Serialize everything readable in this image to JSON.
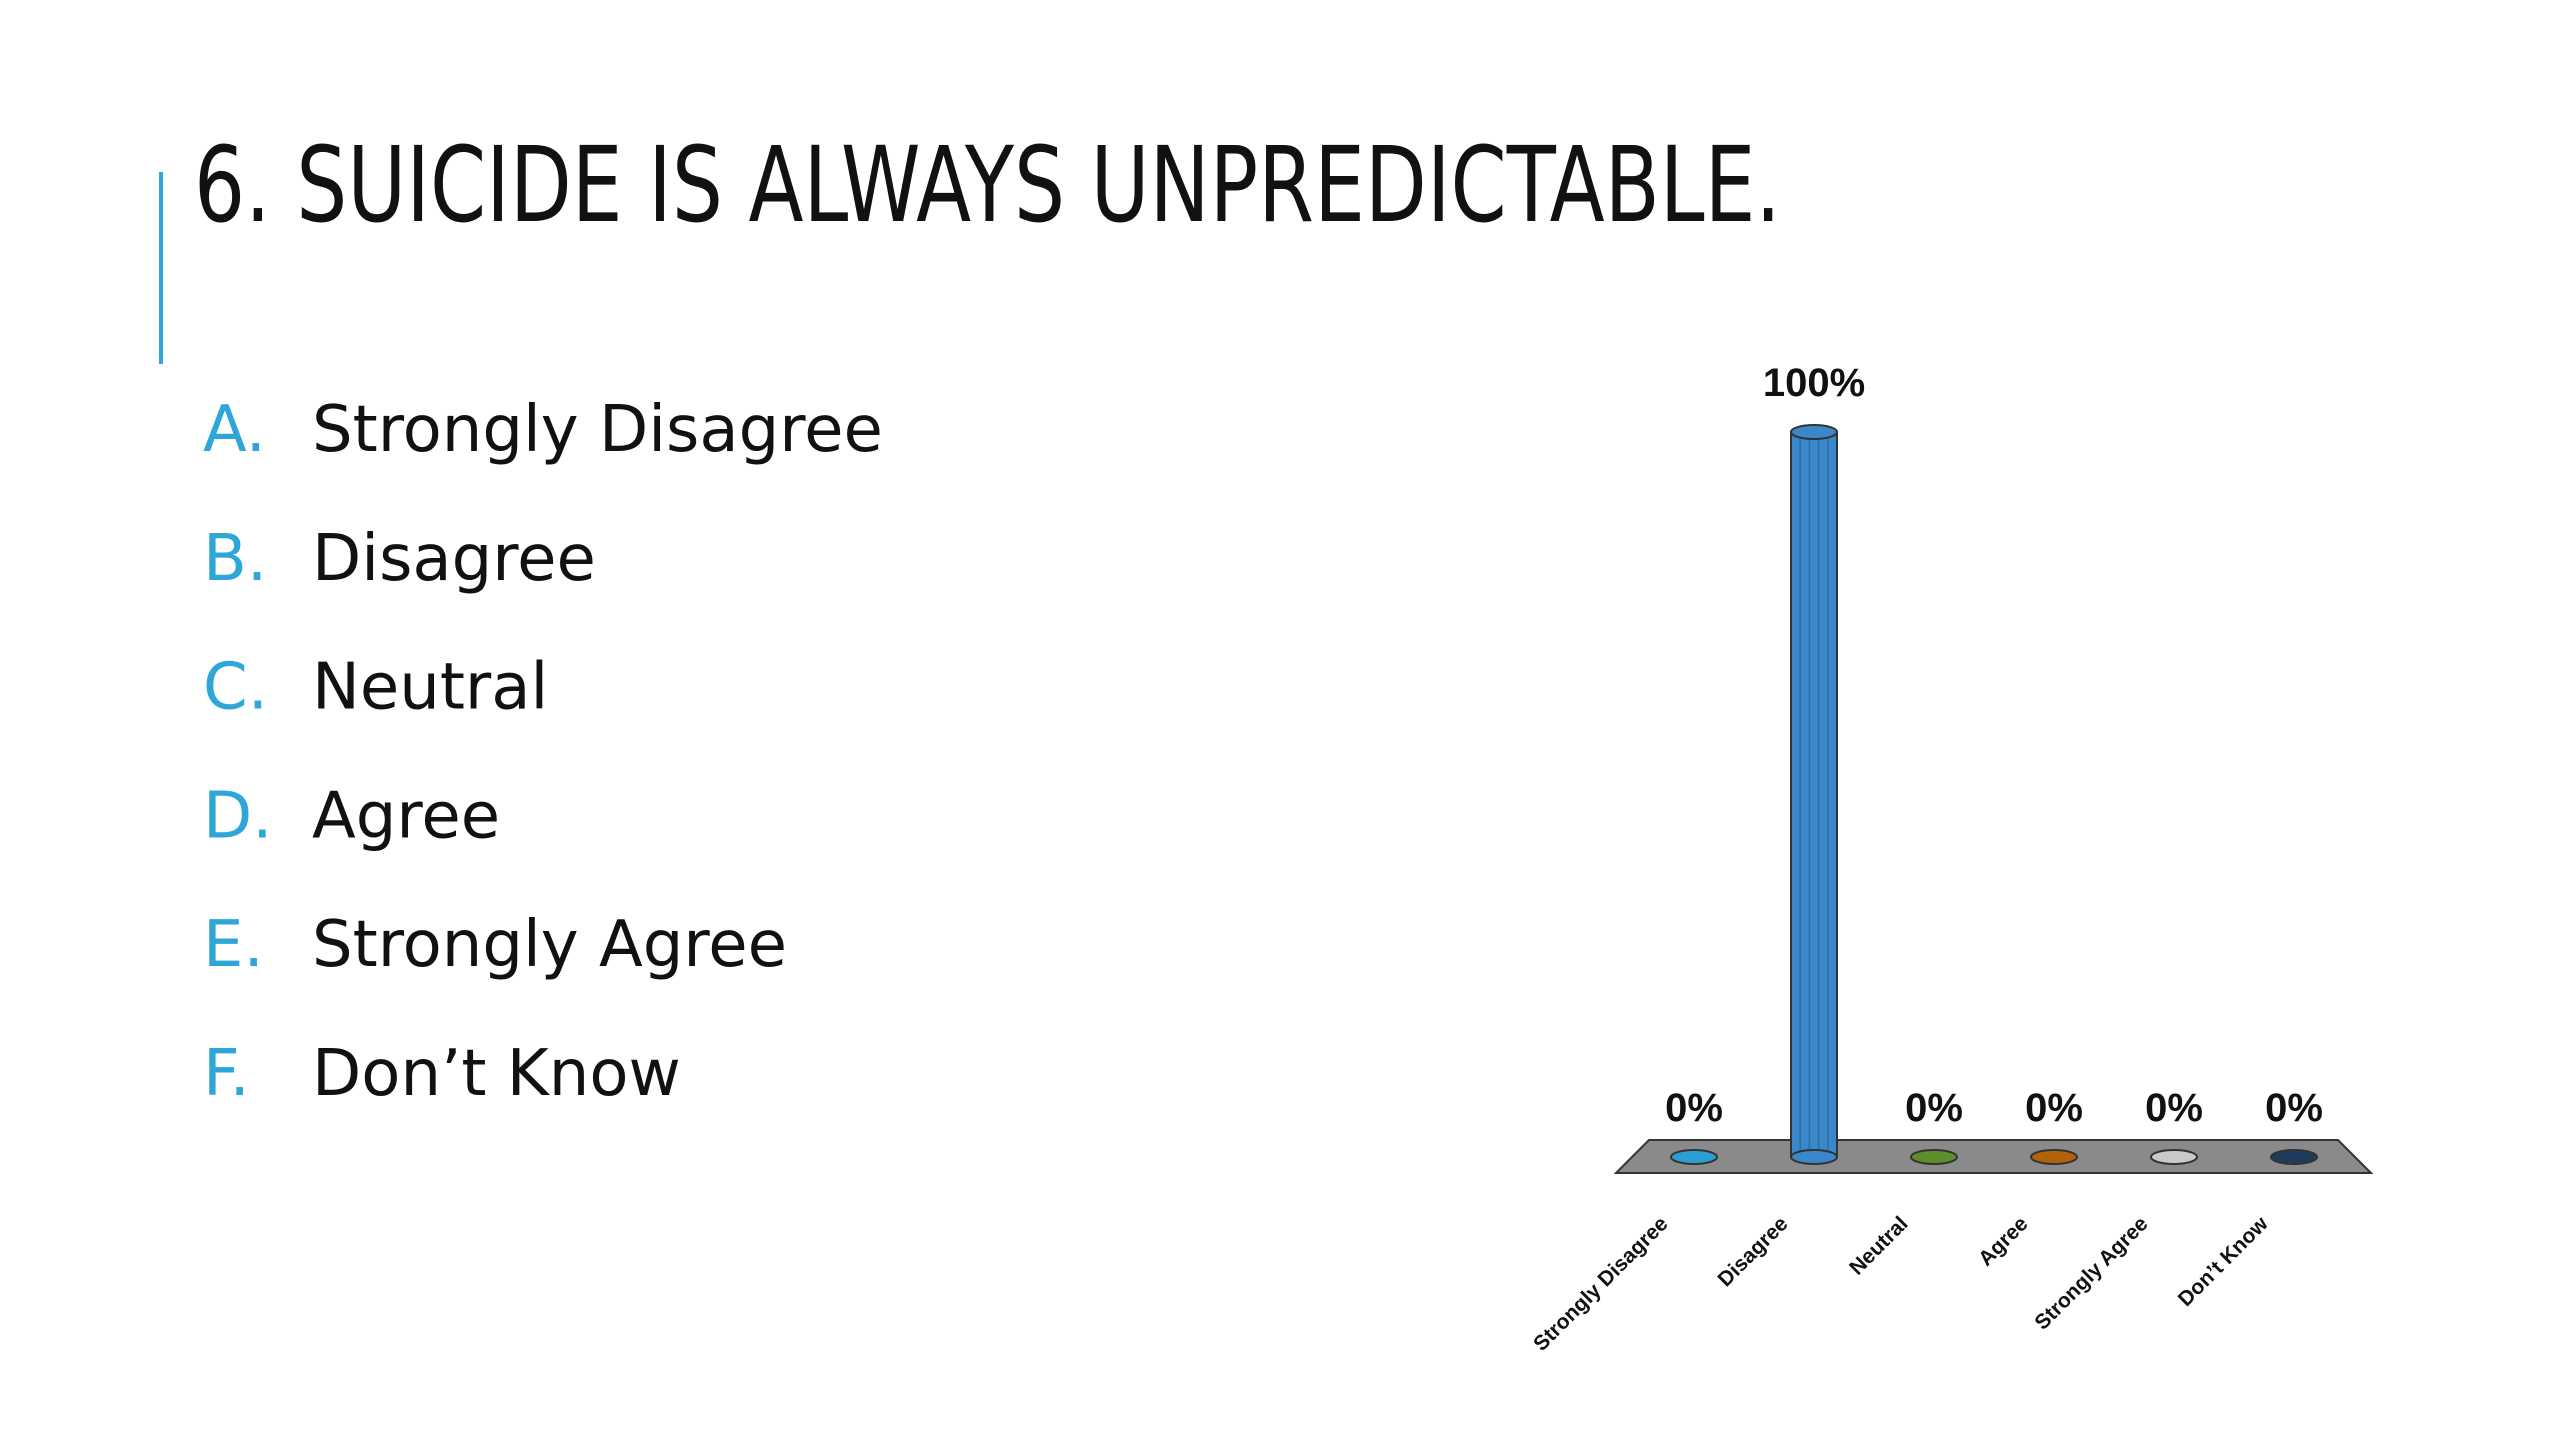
{
  "title": "6. SUICIDE IS ALWAYS UNPREDICTABLE.",
  "options": [
    {
      "letter": "A.",
      "text": "Strongly Disagree"
    },
    {
      "letter": "B.",
      "text": "Disagree"
    },
    {
      "letter": "C.",
      "text": "Neutral"
    },
    {
      "letter": "D.",
      "text": "Agree"
    },
    {
      "letter": "E.",
      "text": "Strongly Agree"
    },
    {
      "letter": "F.",
      "text": "Don’t Know"
    }
  ],
  "chart_data": {
    "type": "bar",
    "categories": [
      "Strongly Disagree",
      "Disagree",
      "Neutral",
      "Agree",
      "Strongly Agree",
      "Don’t Know"
    ],
    "values": [
      0,
      100,
      0,
      0,
      0,
      0
    ],
    "value_labels": [
      "0%",
      "100%",
      "0%",
      "0%",
      "0%",
      "0%"
    ],
    "colors": [
      "#2b9fd3",
      "#3a88c9",
      "#5e8e2b",
      "#b3620c",
      "#c9c9c9",
      "#1f3c5c"
    ]
  }
}
